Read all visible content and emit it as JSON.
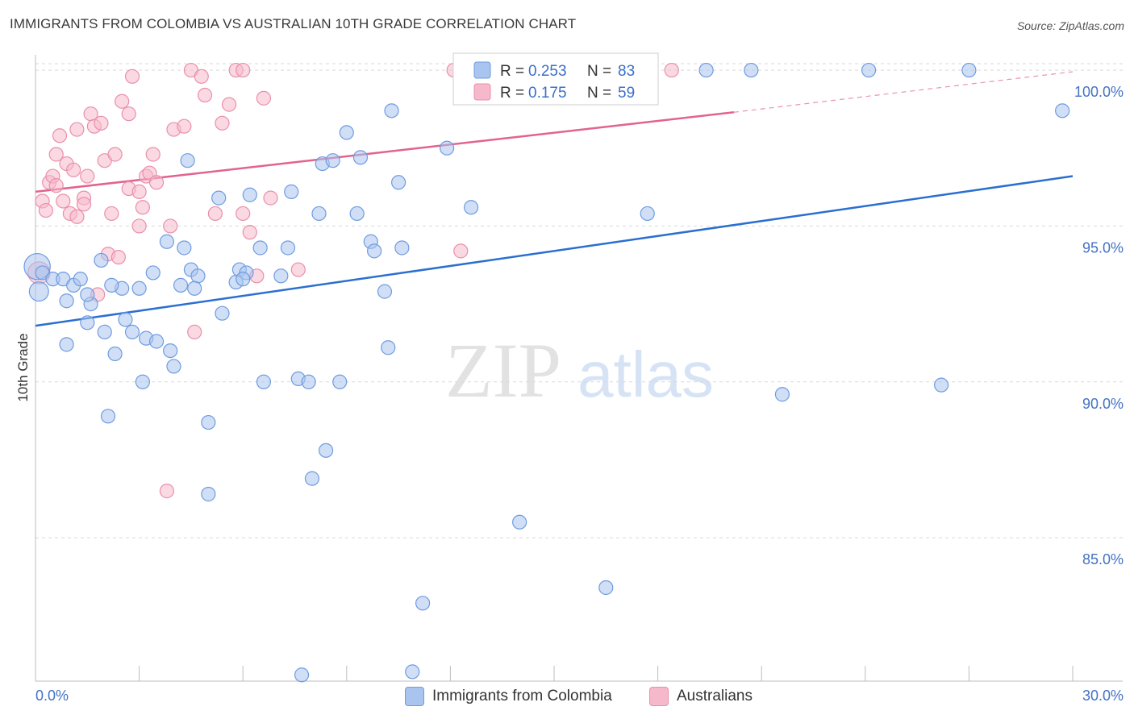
{
  "title": "IMMIGRANTS FROM COLOMBIA VS AUSTRALIAN 10TH GRADE CORRELATION CHART",
  "source": "Source: ZipAtlas.com",
  "watermark": {
    "zip": "ZIP",
    "atlas": "atlas"
  },
  "colors": {
    "blue_fill": "#a9c4ee",
    "blue_stroke": "#6f9be0",
    "blue_line": "#2a6fd0",
    "pink_fill": "#f6b9cb",
    "pink_stroke": "#ea8fab",
    "pink_line": "#e2638e",
    "grid": "#d9d9d9",
    "tick_label": "#4472c4"
  },
  "legend": {
    "r_label": "R =",
    "n_label": "N =",
    "rows": [
      {
        "series": "blue",
        "r": "0.253",
        "n": "83"
      },
      {
        "series": "pink",
        "r": "0.175",
        "n": "59"
      }
    ]
  },
  "bottom_legend": [
    {
      "series": "blue",
      "label": "Immigrants from Colombia"
    },
    {
      "series": "pink",
      "label": "Australians"
    }
  ],
  "chart_data": {
    "type": "scatter",
    "title": "IMMIGRANTS FROM COLOMBIA VS AUSTRALIAN 10TH GRADE CORRELATION CHART",
    "xlabel": "",
    "ylabel": "10th Grade",
    "xlim": [
      0,
      30
    ],
    "ylim": [
      80.4,
      100.7
    ],
    "x_tick_labels": [
      "0.0%",
      "30.0%"
    ],
    "y_ticks": [
      85,
      90,
      95,
      100
    ],
    "y_tick_labels": [
      "85.0%",
      "90.0%",
      "95.0%",
      "100.0%"
    ],
    "grid": "horizontal dashed",
    "legend_position": "top-center",
    "series": [
      {
        "name": "Immigrants from Colombia",
        "color": "blue",
        "trend": {
          "x": [
            0.0,
            30.0
          ],
          "y": [
            91.8,
            96.6
          ]
        },
        "trend_dashed": null,
        "points": [
          [
            0.05,
            93.7,
            1.9
          ],
          [
            0.1,
            92.9,
            1.4
          ],
          [
            0.2,
            93.5,
            1.0
          ],
          [
            0.5,
            93.3,
            1.0
          ],
          [
            0.8,
            93.3,
            1.0
          ],
          [
            1.1,
            93.1,
            1.0
          ],
          [
            0.9,
            92.6,
            1.0
          ],
          [
            1.6,
            92.5,
            1.0
          ],
          [
            1.5,
            92.8,
            1.0
          ],
          [
            1.9,
            93.9,
            1.0
          ],
          [
            0.9,
            91.2,
            1.0
          ],
          [
            1.5,
            91.9,
            1.0
          ],
          [
            2.0,
            91.6,
            1.0
          ],
          [
            2.6,
            92.0,
            1.0
          ],
          [
            2.5,
            93.0,
            1.0
          ],
          [
            2.8,
            91.6,
            1.0
          ],
          [
            3.0,
            93.0,
            1.0
          ],
          [
            3.2,
            91.4,
            1.0
          ],
          [
            3.4,
            93.5,
            1.0
          ],
          [
            3.5,
            91.3,
            1.0
          ],
          [
            2.3,
            90.9,
            1.0
          ],
          [
            3.9,
            91.0,
            1.0
          ],
          [
            4.0,
            90.5,
            1.0
          ],
          [
            4.2,
            93.1,
            1.0
          ],
          [
            4.5,
            93.6,
            1.0
          ],
          [
            4.7,
            93.4,
            1.0
          ],
          [
            4.6,
            93.0,
            1.0
          ],
          [
            3.8,
            94.5,
            1.0
          ],
          [
            4.3,
            94.3,
            1.0
          ],
          [
            4.4,
            97.1,
            1.0
          ],
          [
            5.4,
            92.2,
            1.0
          ],
          [
            5.8,
            93.2,
            1.0
          ],
          [
            5.9,
            93.6,
            1.0
          ],
          [
            6.1,
            93.5,
            1.0
          ],
          [
            6.0,
            93.3,
            1.0
          ],
          [
            6.5,
            94.3,
            1.0
          ],
          [
            7.1,
            93.4,
            1.0
          ],
          [
            7.3,
            94.3,
            1.0
          ],
          [
            5.3,
            95.9,
            1.0
          ],
          [
            6.2,
            96.0,
            1.0
          ],
          [
            7.4,
            96.1,
            1.0
          ],
          [
            8.2,
            95.4,
            1.0
          ],
          [
            8.3,
            97.0,
            1.0
          ],
          [
            8.6,
            97.1,
            1.0
          ],
          [
            9.0,
            98.0,
            1.0
          ],
          [
            9.3,
            95.4,
            1.0
          ],
          [
            9.4,
            97.2,
            1.0
          ],
          [
            9.7,
            94.5,
            1.0
          ],
          [
            9.8,
            94.2,
            1.0
          ],
          [
            10.6,
            94.3,
            1.0
          ],
          [
            10.5,
            96.4,
            1.0
          ],
          [
            10.1,
            92.9,
            1.0
          ],
          [
            10.2,
            91.1,
            1.0
          ],
          [
            11.9,
            97.5,
            1.0
          ],
          [
            12.6,
            95.6,
            1.0
          ],
          [
            10.3,
            98.7,
            1.0
          ],
          [
            2.1,
            88.9,
            1.0
          ],
          [
            3.1,
            90.0,
            1.0
          ],
          [
            5.0,
            88.7,
            1.0
          ],
          [
            6.6,
            90.0,
            1.0
          ],
          [
            7.6,
            90.1,
            1.0
          ],
          [
            7.9,
            90.0,
            1.0
          ],
          [
            8.8,
            90.0,
            1.0
          ],
          [
            8.4,
            87.8,
            1.0
          ],
          [
            8.0,
            86.9,
            1.0
          ],
          [
            5.0,
            86.4,
            1.0
          ],
          [
            14.0,
            85.5,
            1.0
          ],
          [
            16.5,
            83.4,
            1.0
          ],
          [
            11.2,
            82.9,
            1.0
          ],
          [
            7.7,
            80.6,
            1.0
          ],
          [
            10.9,
            80.7,
            1.0
          ],
          [
            12.7,
            100.0,
            1.0
          ],
          [
            13.9,
            100.0,
            1.0
          ],
          [
            19.4,
            100.0,
            1.0
          ],
          [
            20.7,
            100.0,
            1.0
          ],
          [
            24.1,
            100.0,
            1.0
          ],
          [
            27.0,
            100.0,
            1.0
          ],
          [
            29.7,
            98.7,
            1.0
          ],
          [
            21.6,
            89.6,
            1.0
          ],
          [
            26.2,
            89.9,
            1.0
          ],
          [
            17.7,
            95.4,
            1.0
          ],
          [
            1.3,
            93.3,
            1.0
          ],
          [
            2.2,
            93.1,
            1.0
          ]
        ]
      },
      {
        "name": "Australians",
        "color": "pink",
        "trend": {
          "x": [
            0.0,
            20.2
          ],
          "y": [
            96.1,
            98.65
          ]
        },
        "trend_dashed": {
          "x": [
            20.2,
            30.0
          ],
          "y": [
            98.65,
            99.95
          ]
        },
        "points": [
          [
            0.1,
            93.5,
            1.6
          ],
          [
            0.2,
            95.8,
            1.0
          ],
          [
            0.3,
            95.5,
            1.0
          ],
          [
            0.4,
            96.4,
            1.0
          ],
          [
            0.5,
            96.6,
            1.0
          ],
          [
            0.6,
            96.3,
            1.0
          ],
          [
            0.6,
            97.3,
            1.0
          ],
          [
            0.7,
            97.9,
            1.0
          ],
          [
            0.8,
            95.8,
            1.0
          ],
          [
            0.9,
            97.0,
            1.0
          ],
          [
            1.0,
            95.4,
            1.0
          ],
          [
            1.1,
            96.8,
            1.0
          ],
          [
            1.2,
            95.3,
            1.0
          ],
          [
            1.2,
            98.1,
            1.0
          ],
          [
            1.4,
            95.9,
            1.0
          ],
          [
            1.4,
            95.7,
            1.0
          ],
          [
            1.5,
            96.6,
            1.0
          ],
          [
            1.6,
            98.6,
            1.0
          ],
          [
            1.7,
            98.2,
            1.0
          ],
          [
            1.9,
            98.3,
            1.0
          ],
          [
            2.0,
            97.1,
            1.0
          ],
          [
            2.2,
            95.4,
            1.0
          ],
          [
            2.3,
            97.3,
            1.0
          ],
          [
            2.5,
            99.0,
            1.0
          ],
          [
            2.7,
            96.2,
            1.0
          ],
          [
            2.7,
            98.6,
            1.0
          ],
          [
            2.8,
            99.8,
            1.0
          ],
          [
            3.0,
            96.1,
            1.0
          ],
          [
            3.0,
            95.0,
            1.0
          ],
          [
            3.1,
            95.6,
            1.0
          ],
          [
            3.2,
            96.6,
            1.0
          ],
          [
            3.3,
            96.7,
            1.0
          ],
          [
            3.4,
            97.3,
            1.0
          ],
          [
            3.5,
            96.4,
            1.0
          ],
          [
            3.9,
            95.0,
            1.0
          ],
          [
            4.0,
            98.1,
            1.0
          ],
          [
            4.3,
            98.2,
            1.0
          ],
          [
            4.5,
            100.0,
            1.0
          ],
          [
            4.8,
            99.8,
            1.0
          ],
          [
            4.9,
            99.2,
            1.0
          ],
          [
            5.2,
            95.4,
            1.0
          ],
          [
            5.4,
            98.3,
            1.0
          ],
          [
            5.6,
            98.9,
            1.0
          ],
          [
            5.8,
            100.0,
            1.0
          ],
          [
            6.0,
            100.0,
            1.0
          ],
          [
            6.0,
            95.4,
            1.0
          ],
          [
            6.2,
            94.8,
            1.0
          ],
          [
            6.4,
            93.4,
            1.0
          ],
          [
            6.6,
            99.1,
            1.0
          ],
          [
            6.8,
            95.9,
            1.0
          ],
          [
            7.6,
            93.6,
            1.0
          ],
          [
            2.1,
            94.1,
            1.0
          ],
          [
            2.4,
            94.0,
            1.0
          ],
          [
            1.8,
            92.8,
            1.0
          ],
          [
            4.6,
            91.6,
            1.0
          ],
          [
            3.8,
            86.5,
            1.0
          ],
          [
            12.3,
            94.2,
            1.0
          ],
          [
            12.1,
            100.0,
            1.0
          ],
          [
            18.4,
            100.0,
            1.0
          ]
        ]
      }
    ]
  }
}
